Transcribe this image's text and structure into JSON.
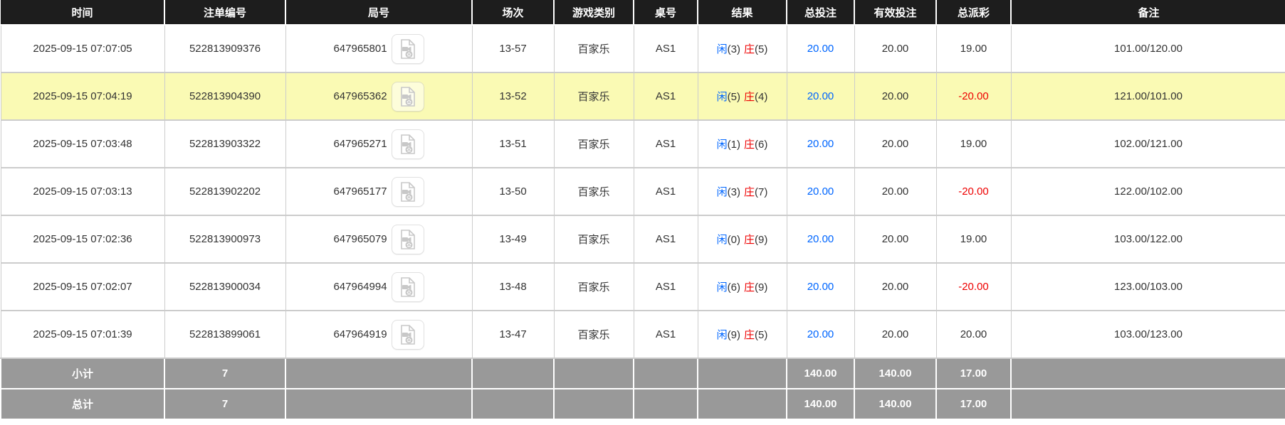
{
  "colors": {
    "header_bg": "#1d1d1d",
    "header_text": "#ffffff",
    "row_text": "#333333",
    "highlight_row_bg": "#fafab4",
    "accent_blue": "#0066ff",
    "accent_red": "#ee0000",
    "summary_bg": "#999999",
    "border": "#cccccc"
  },
  "table": {
    "columns": [
      {
        "key": "time",
        "label": "时间"
      },
      {
        "key": "bet-id",
        "label": "注单编号"
      },
      {
        "key": "round",
        "label": "局号"
      },
      {
        "key": "session",
        "label": "场次"
      },
      {
        "key": "game-type",
        "label": "游戏类别"
      },
      {
        "key": "table-no",
        "label": "桌号"
      },
      {
        "key": "result",
        "label": "结果"
      },
      {
        "key": "total-bet",
        "label": "总投注"
      },
      {
        "key": "valid-bet",
        "label": "有效投注"
      },
      {
        "key": "total-payout",
        "label": "总派彩"
      },
      {
        "key": "remark",
        "label": "备注"
      }
    ],
    "video_icon_name": "video-replay-icon",
    "rows": [
      {
        "time": "2025-09-15 07:07:05",
        "bet_id": "522813909376",
        "round": "647965801",
        "session": "13-57",
        "game_type": "百家乐",
        "table_no": "AS1",
        "result": {
          "player_label": "闲",
          "player_score": "(3)",
          "banker_label": "庄",
          "banker_score": "(5)"
        },
        "total_bet": "20.00",
        "valid_bet": "20.00",
        "total_payout": "19.00",
        "remark": "101.00/120.00",
        "highlighted": false
      },
      {
        "time": "2025-09-15 07:04:19",
        "bet_id": "522813904390",
        "round": "647965362",
        "session": "13-52",
        "game_type": "百家乐",
        "table_no": "AS1",
        "result": {
          "player_label": "闲",
          "player_score": "(5)",
          "banker_label": "庄",
          "banker_score": "(4)"
        },
        "total_bet": "20.00",
        "valid_bet": "20.00",
        "total_payout": "-20.00",
        "remark": "121.00/101.00",
        "highlighted": true
      },
      {
        "time": "2025-09-15 07:03:48",
        "bet_id": "522813903322",
        "round": "647965271",
        "session": "13-51",
        "game_type": "百家乐",
        "table_no": "AS1",
        "result": {
          "player_label": "闲",
          "player_score": "(1)",
          "banker_label": "庄",
          "banker_score": "(6)"
        },
        "total_bet": "20.00",
        "valid_bet": "20.00",
        "total_payout": "19.00",
        "remark": "102.00/121.00",
        "highlighted": false
      },
      {
        "time": "2025-09-15 07:03:13",
        "bet_id": "522813902202",
        "round": "647965177",
        "session": "13-50",
        "game_type": "百家乐",
        "table_no": "AS1",
        "result": {
          "player_label": "闲",
          "player_score": "(3)",
          "banker_label": "庄",
          "banker_score": "(7)"
        },
        "total_bet": "20.00",
        "valid_bet": "20.00",
        "total_payout": "-20.00",
        "remark": "122.00/102.00",
        "highlighted": false
      },
      {
        "time": "2025-09-15 07:02:36",
        "bet_id": "522813900973",
        "round": "647965079",
        "session": "13-49",
        "game_type": "百家乐",
        "table_no": "AS1",
        "result": {
          "player_label": "闲",
          "player_score": "(0)",
          "banker_label": "庄",
          "banker_score": "(9)"
        },
        "total_bet": "20.00",
        "valid_bet": "20.00",
        "total_payout": "19.00",
        "remark": "103.00/122.00",
        "highlighted": false
      },
      {
        "time": "2025-09-15 07:02:07",
        "bet_id": "522813900034",
        "round": "647964994",
        "session": "13-48",
        "game_type": "百家乐",
        "table_no": "AS1",
        "result": {
          "player_label": "闲",
          "player_score": "(6)",
          "banker_label": "庄",
          "banker_score": "(9)"
        },
        "total_bet": "20.00",
        "valid_bet": "20.00",
        "total_payout": "-20.00",
        "remark": "123.00/103.00",
        "highlighted": false
      },
      {
        "time": "2025-09-15 07:01:39",
        "bet_id": "522813899061",
        "round": "647964919",
        "session": "13-47",
        "game_type": "百家乐",
        "table_no": "AS1",
        "result": {
          "player_label": "闲",
          "player_score": "(9)",
          "banker_label": "庄",
          "banker_score": "(5)"
        },
        "total_bet": "20.00",
        "valid_bet": "20.00",
        "total_payout": "20.00",
        "remark": "103.00/123.00",
        "highlighted": false
      }
    ],
    "summary_rows": [
      {
        "key": "subtotal",
        "label": "小计",
        "count": "7",
        "total_bet": "140.00",
        "valid_bet": "140.00",
        "total_payout": "17.00"
      },
      {
        "key": "total",
        "label": "总计",
        "count": "7",
        "total_bet": "140.00",
        "valid_bet": "140.00",
        "total_payout": "17.00"
      }
    ]
  }
}
